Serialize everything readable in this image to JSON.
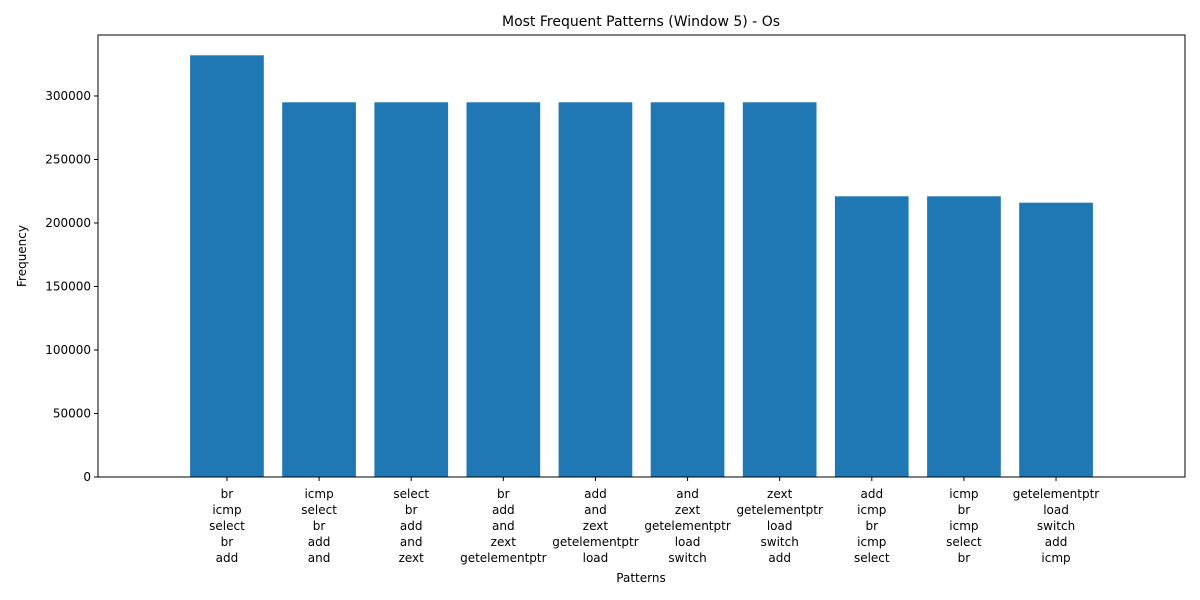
{
  "chart_data": {
    "type": "bar",
    "title": "Most Frequent Patterns (Window 5) - Os",
    "xlabel": "Patterns",
    "ylabel": "Frequency",
    "ylim": [
      0,
      348000
    ],
    "yticks": [
      0,
      50000,
      100000,
      150000,
      200000,
      250000,
      300000
    ],
    "grid": false,
    "bar_color": "#1f77b4",
    "categories": [
      [
        "br",
        "icmp",
        "select",
        "br",
        "add"
      ],
      [
        "icmp",
        "select",
        "br",
        "add",
        "and"
      ],
      [
        "select",
        "br",
        "add",
        "and",
        "zext"
      ],
      [
        "br",
        "add",
        "and",
        "zext",
        "getelementptr"
      ],
      [
        "add",
        "and",
        "zext",
        "getelementptr",
        "load"
      ],
      [
        "and",
        "zext",
        "getelementptr",
        "load",
        "switch"
      ],
      [
        "zext",
        "getelementptr",
        "load",
        "switch",
        "add"
      ],
      [
        "add",
        "icmp",
        "br",
        "icmp",
        "select"
      ],
      [
        "icmp",
        "br",
        "icmp",
        "select",
        "br"
      ],
      [
        "getelementptr",
        "load",
        "switch",
        "add",
        "icmp"
      ]
    ],
    "values": [
      332000,
      295000,
      295000,
      295000,
      295000,
      295000,
      295000,
      221000,
      221000,
      216000
    ]
  }
}
